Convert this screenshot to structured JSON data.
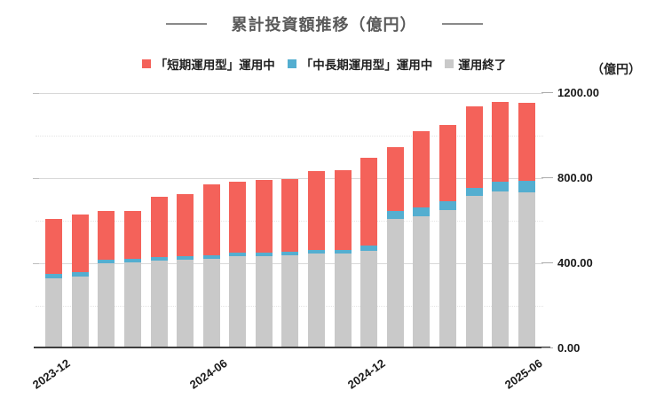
{
  "title": {
    "text": "累計投資額推移（億円）"
  },
  "unit_label": "（億円）",
  "legend": [
    {
      "key": "short_term",
      "label": "「短期運用型」運用中",
      "color": "#f4625a"
    },
    {
      "key": "mid_long_term",
      "label": "「中長期運用型」運用中",
      "color": "#54aed0"
    },
    {
      "key": "ended",
      "label": "運用終了",
      "color": "#c9c9c9"
    }
  ],
  "chart_data": {
    "type": "bar",
    "stacked": true,
    "title": "累計投資額推移（億円）",
    "ylabel": "（億円）",
    "ylim": [
      0,
      1200
    ],
    "grid": "horizontal, major solid at 400 intervals, minor dotted at 200 intervals",
    "legend_position": "top",
    "categories": [
      "2023-12",
      "2024-01",
      "2024-02",
      "2024-03",
      "2024-04",
      "2024-05",
      "2024-06",
      "2024-07",
      "2024-08",
      "2024-09",
      "2024-10",
      "2024-11",
      "2024-12",
      "2025-01",
      "2025-02",
      "2025-03",
      "2025-04",
      "2025-05",
      "2025-06"
    ],
    "series": [
      {
        "name": "運用終了",
        "color": "#c9c9c9",
        "values": [
          328,
          336,
          401,
          404,
          412,
          415,
          420,
          433,
          433,
          437,
          446,
          446,
          458,
          610,
          620,
          651,
          717,
          739,
          735
        ]
      },
      {
        "name": "「中長期運用型」運用中",
        "color": "#54aed0",
        "values": [
          21,
          24,
          17,
          18,
          17,
          17,
          17,
          17,
          16,
          16,
          18,
          17,
          27,
          37,
          41,
          42,
          38,
          44,
          51
        ]
      },
      {
        "name": "「短期運用型」運用中",
        "color": "#f4625a",
        "values": [
          258,
          269,
          229,
          223,
          285,
          292,
          333,
          333,
          344,
          344,
          371,
          376,
          410,
          299,
          359,
          358,
          382,
          377,
          369
        ]
      }
    ],
    "totals": [
      607,
      629,
      647,
      645,
      714,
      724,
      770,
      783,
      793,
      797,
      835,
      839,
      895,
      946,
      1020,
      1051,
      1137,
      1160,
      1155
    ],
    "xticks": [
      {
        "label": "2023-12",
        "index": 0
      },
      {
        "label": "2024-06",
        "index": 6
      },
      {
        "label": "2024-12",
        "index": 12
      },
      {
        "label": "2025-06",
        "index": 18
      }
    ],
    "yticks": [
      {
        "label": "0.00",
        "value": 0
      },
      {
        "label": "400.00",
        "value": 400
      },
      {
        "label": "800.00",
        "value": 800
      },
      {
        "label": "1200.00",
        "value": 1200
      }
    ]
  }
}
